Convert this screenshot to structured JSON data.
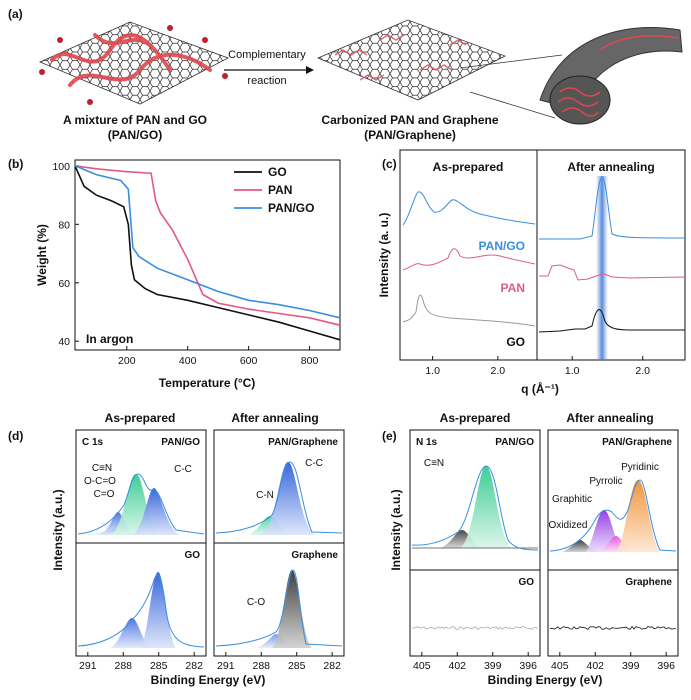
{
  "panel_a": {
    "label": "(a)",
    "mixture_title": "A mixture of PAN and GO",
    "mixture_sub": "(PAN/GO)",
    "arrow_top": "Complementary",
    "arrow_bottom": "reaction",
    "carbon_title": "Carbonized PAN and Graphene",
    "carbon_sub": "(PAN/Graphene)"
  },
  "panel_b": {
    "label": "(b)",
    "note": "In argon"
  },
  "panel_c": {
    "label": "(c)",
    "left_title": "As-prepared",
    "right_title": "After annealing",
    "ylabel": "Intensity (a. u.)",
    "xlabel": "q (Å⁻¹)"
  },
  "panel_d": {
    "label": "(d)",
    "left_title": "As-prepared",
    "right_title": "After annealing",
    "ylabel": "Intensity (a.u.)",
    "xlabel": "Binding Energy (eV)",
    "c1s": "C 1s",
    "pan_go": "PAN/GO",
    "pan_graphene": "PAN/Graphene",
    "go": "GO",
    "graphene": "Graphene",
    "peaks_tl": [
      "C≡N",
      "O-C=O",
      "C=O",
      "C-C"
    ],
    "peaks_tr": [
      "C-N",
      "C-C"
    ],
    "peaks_br": [
      "C-O"
    ]
  },
  "panel_e": {
    "label": "(e)",
    "left_title": "As-prepared",
    "right_title": "After annealing",
    "ylabel": "Intensity (a.u.)",
    "xlabel": "Binding Energy (eV)",
    "n1s": "N 1s",
    "pan_go": "PAN/GO",
    "pan_graphene": "PAN/Graphene",
    "go": "GO",
    "graphene": "Graphene",
    "peaks_tl": [
      "C≡N"
    ],
    "peaks_tr": [
      "Pyridinic",
      "Pyrrolic",
      "Graphitic",
      "Oxidized"
    ]
  },
  "chart_data": [
    {
      "type": "line",
      "xlabel": "Temperature (°C)",
      "ylabel": "Weight (%)",
      "xlim": [
        30,
        900
      ],
      "ylim": [
        37,
        102
      ],
      "xticks": [
        200,
        400,
        600,
        800
      ],
      "yticks": [
        40,
        60,
        80,
        100
      ],
      "legend_position": "top-right",
      "series": [
        {
          "name": "GO",
          "color": "#111111",
          "x": [
            30,
            60,
            100,
            150,
            190,
            205,
            215,
            225,
            260,
            300,
            400,
            500,
            600,
            700,
            800,
            900
          ],
          "y": [
            100,
            93,
            90,
            88,
            86,
            80,
            66,
            61,
            58,
            56,
            54,
            51.5,
            49,
            46.5,
            43.5,
            40.5
          ]
        },
        {
          "name": "PAN",
          "color": "#e05a86",
          "x": [
            30,
            100,
            200,
            280,
            295,
            310,
            350,
            400,
            450,
            500,
            600,
            700,
            800,
            900
          ],
          "y": [
            100,
            99,
            98,
            97.5,
            88,
            84,
            78,
            68,
            56,
            53,
            51,
            49.5,
            48,
            45.5
          ]
        },
        {
          "name": "PAN/GO",
          "color": "#3a8ee0",
          "x": [
            30,
            100,
            180,
            205,
            220,
            240,
            300,
            400,
            500,
            600,
            700,
            800,
            900
          ],
          "y": [
            100,
            97,
            95,
            92,
            72,
            69,
            65,
            61,
            57,
            54,
            52.5,
            50.5,
            48
          ]
        }
      ]
    },
    {
      "type": "line",
      "panel": "c-as-prepared",
      "xlim": [
        0.5,
        2.6
      ],
      "xticks": [
        1.0,
        2.0
      ],
      "series": [
        {
          "name": "GO"
        },
        {
          "name": "PAN"
        },
        {
          "name": "PAN/GO"
        }
      ]
    },
    {
      "type": "line",
      "panel": "c-after-annealing",
      "xlim": [
        0.5,
        2.6
      ],
      "xticks": [
        1.0,
        2.0
      ]
    },
    {
      "type": "line",
      "panel": "d-xps-C1s",
      "xlim": [
        292,
        281
      ],
      "xticks": [
        291,
        288,
        285,
        282
      ]
    },
    {
      "type": "line",
      "panel": "e-xps-N1s",
      "xlim": [
        406,
        395
      ],
      "xticks": [
        405,
        402,
        399,
        396
      ]
    }
  ]
}
